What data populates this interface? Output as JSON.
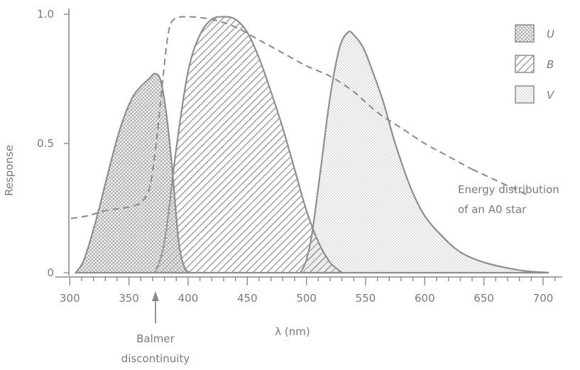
{
  "chart_data": {
    "type": "area",
    "xlabel": "λ (nm)",
    "ylabel": "Response",
    "xlim": [
      295,
      715
    ],
    "ylim": [
      0,
      1.0
    ],
    "x_ticks": [
      300,
      350,
      400,
      450,
      500,
      550,
      600,
      650,
      700
    ],
    "y_ticks": [
      {
        "value": 0,
        "label": "0"
      },
      {
        "value": 0.5,
        "label": "0.5"
      },
      {
        "value": 1.0,
        "label": "1.0"
      }
    ],
    "legend_position": "top-right",
    "series": [
      {
        "name": "U",
        "pattern": "crosshatch",
        "points": [
          [
            305,
            0
          ],
          [
            312,
            0.05
          ],
          [
            322,
            0.2
          ],
          [
            332,
            0.38
          ],
          [
            342,
            0.55
          ],
          [
            352,
            0.67
          ],
          [
            360,
            0.72
          ],
          [
            367,
            0.75
          ],
          [
            372,
            0.77
          ],
          [
            377,
            0.74
          ],
          [
            382,
            0.6
          ],
          [
            387,
            0.38
          ],
          [
            392,
            0.12
          ],
          [
            397,
            0.02
          ],
          [
            402,
            0
          ]
        ]
      },
      {
        "name": "B",
        "pattern": "diagonal",
        "points": [
          [
            372,
            0
          ],
          [
            380,
            0.12
          ],
          [
            390,
            0.48
          ],
          [
            400,
            0.78
          ],
          [
            410,
            0.92
          ],
          [
            420,
            0.98
          ],
          [
            430,
            0.99
          ],
          [
            440,
            0.98
          ],
          [
            450,
            0.93
          ],
          [
            460,
            0.83
          ],
          [
            470,
            0.7
          ],
          [
            480,
            0.56
          ],
          [
            490,
            0.4
          ],
          [
            500,
            0.24
          ],
          [
            510,
            0.12
          ],
          [
            520,
            0.04
          ],
          [
            530,
            0
          ]
        ]
      },
      {
        "name": "V",
        "pattern": "dotted",
        "points": [
          [
            495,
            0
          ],
          [
            500,
            0.05
          ],
          [
            505,
            0.16
          ],
          [
            512,
            0.4
          ],
          [
            520,
            0.68
          ],
          [
            528,
            0.87
          ],
          [
            535,
            0.93
          ],
          [
            540,
            0.92
          ],
          [
            548,
            0.87
          ],
          [
            555,
            0.79
          ],
          [
            565,
            0.66
          ],
          [
            575,
            0.5
          ],
          [
            588,
            0.33
          ],
          [
            600,
            0.22
          ],
          [
            615,
            0.14
          ],
          [
            630,
            0.08
          ],
          [
            650,
            0.04
          ],
          [
            680,
            0.01
          ],
          [
            705,
            0
          ]
        ]
      }
    ],
    "energy_curve": {
      "label_line1": "Energy distribution",
      "label_line2": "of an A0 star",
      "points": [
        [
          301,
          0.21
        ],
        [
          315,
          0.22
        ],
        [
          330,
          0.24
        ],
        [
          345,
          0.25
        ],
        [
          355,
          0.26
        ],
        [
          362,
          0.28
        ],
        [
          368,
          0.34
        ],
        [
          373,
          0.5
        ],
        [
          378,
          0.72
        ],
        [
          383,
          0.92
        ],
        [
          388,
          0.98
        ],
        [
          400,
          0.99
        ],
        [
          420,
          0.98
        ],
        [
          440,
          0.95
        ],
        [
          460,
          0.9
        ],
        [
          480,
          0.85
        ],
        [
          500,
          0.8
        ],
        [
          520,
          0.76
        ],
        [
          540,
          0.7
        ],
        [
          560,
          0.62
        ],
        [
          580,
          0.56
        ],
        [
          600,
          0.5
        ],
        [
          620,
          0.45
        ],
        [
          640,
          0.4
        ]
      ]
    },
    "annotation": {
      "text_line1": "Balmer",
      "text_line2": "discontinuity",
      "x": 364.6
    },
    "colors": {
      "curve": "#8e8e8e",
      "hatch": "#9a9a9a",
      "text": "#7a7a7a"
    }
  }
}
